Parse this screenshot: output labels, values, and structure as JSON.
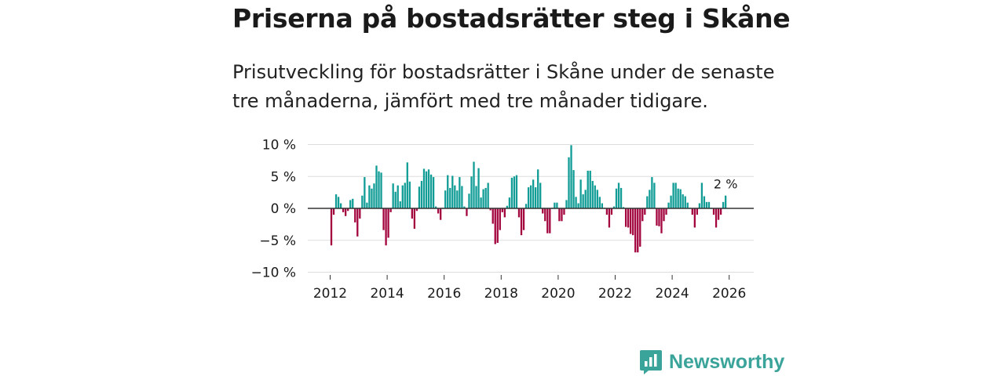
{
  "title": "Priserna på bostadsrätter steg i Skåne",
  "subtitle": "Prisutveckling för bostadsrätter i Skåne under de senaste tre månaderna, jämfört med tre månader tidigare.",
  "brand": "Newsworthy",
  "colors": {
    "positive": "#119c96",
    "negative": "#a3063e",
    "grid": "#dddddd",
    "zero": "#333333",
    "brand": "#3aa39a"
  },
  "chart_data": {
    "type": "bar",
    "title": "Priserna på bostadsrätter steg i Skåne",
    "xlabel": "",
    "ylabel": "",
    "unit": "%",
    "ylim": [
      -10,
      10
    ],
    "y_ticks": [
      10,
      5,
      0,
      -5,
      -10
    ],
    "y_tick_labels": [
      "10 %",
      "5 %",
      "0 %",
      "−5 %",
      "−10 %"
    ],
    "x_ticks": [
      2012,
      2014,
      2016,
      2018,
      2020,
      2022,
      2024,
      2026
    ],
    "x_tick_labels": [
      "2012",
      "2014",
      "2016",
      "2018",
      "2020",
      "2022",
      "2024",
      "2026"
    ],
    "start": "2012-01",
    "frequency": "monthly",
    "annotation": {
      "text": "2 %",
      "at": "last"
    },
    "values": [
      -5.8,
      -1.0,
      2.2,
      1.8,
      0.8,
      -0.6,
      -1.2,
      -0.4,
      1.3,
      1.5,
      -2.2,
      -4.4,
      -1.6,
      2.0,
      4.9,
      0.9,
      3.6,
      3.1,
      3.9,
      6.7,
      5.8,
      5.6,
      -3.4,
      -5.8,
      -4.6,
      -0.6,
      3.9,
      2.6,
      3.6,
      1.1,
      3.6,
      4.0,
      7.2,
      4.2,
      -1.6,
      -3.2,
      -0.4,
      3.4,
      4.3,
      6.2,
      5.8,
      6.1,
      5.3,
      4.9,
      0.3,
      -0.8,
      -1.8,
      0.1,
      2.8,
      5.2,
      3.2,
      5.1,
      3.6,
      2.8,
      4.9,
      3.5,
      0.3,
      -1.2,
      2.3,
      5.0,
      7.3,
      3.5,
      6.3,
      1.7,
      3.0,
      3.2,
      4.0,
      -0.3,
      -2.4,
      -5.6,
      -5.4,
      -3.4,
      -0.6,
      -1.4,
      0.4,
      1.7,
      4.8,
      5.0,
      5.2,
      -1.4,
      -4.2,
      -3.4,
      0.7,
      3.3,
      3.6,
      4.5,
      3.3,
      6.1,
      4.0,
      -0.8,
      -2.0,
      -3.9,
      -3.9,
      0.1,
      0.9,
      0.9,
      -2.0,
      -2.0,
      -1.0,
      1.3,
      8.0,
      9.9,
      6.0,
      1.8,
      0.8,
      4.5,
      2.2,
      2.9,
      5.9,
      5.9,
      4.3,
      3.6,
      2.9,
      1.8,
      0.8,
      0.1,
      -1.0,
      -3.0,
      -1.0,
      0.3,
      3.1,
      4.0,
      3.2,
      0.2,
      -2.9,
      -3.0,
      -4.0,
      -4.2,
      -6.9,
      -6.9,
      -6.0,
      -2.0,
      -1.0,
      1.9,
      2.9,
      4.9,
      4.0,
      -2.7,
      -2.8,
      -3.9,
      -2.0,
      -1.0,
      0.9,
      2.0,
      4.0,
      4.0,
      3.1,
      3.0,
      2.2,
      1.9,
      0.9,
      0.1,
      -1.0,
      -3.0,
      -1.0,
      0.8,
      4.0,
      1.9,
      1.0,
      1.0,
      0.1,
      -1.0,
      -3.0,
      -1.8,
      -1.0,
      1.0,
      2.0
    ]
  }
}
